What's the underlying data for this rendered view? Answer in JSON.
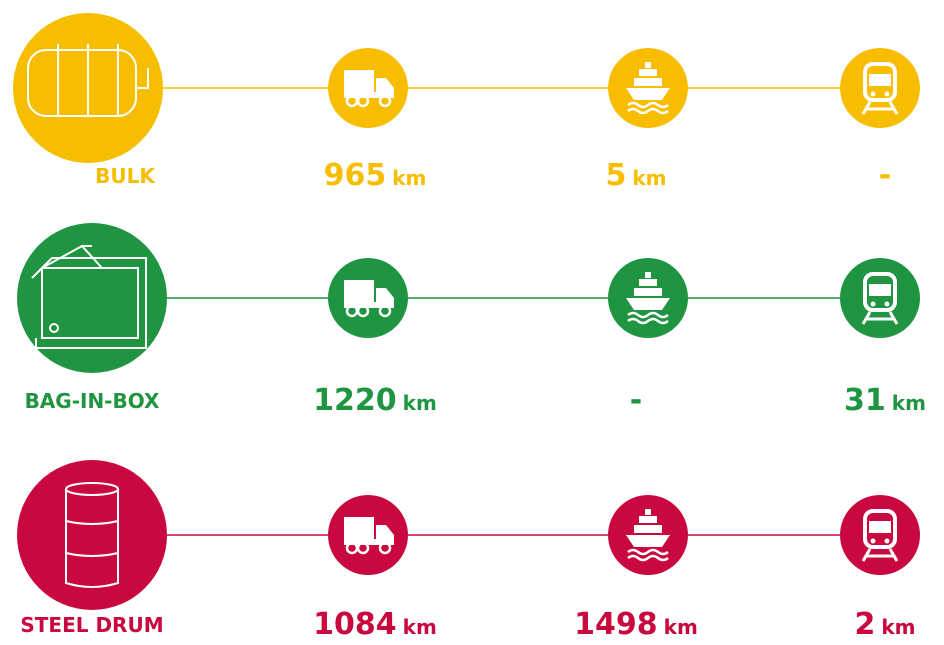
{
  "rows": [
    {
      "label": "BULK",
      "color": "#f7bd00",
      "distances": [
        {
          "value": 965,
          "unit": "km"
        },
        {
          "value": 5,
          "unit": "km"
        },
        {
          "value": "-"
        }
      ]
    },
    {
      "label": "BAG-IN-BOX",
      "color": "#1f9441",
      "distances": [
        {
          "value": 1220,
          "unit": "km"
        },
        {
          "value": "-"
        },
        {
          "value": 31,
          "unit": "km"
        }
      ]
    },
    {
      "label": "STEEL DRUM",
      "color": "#c8083e",
      "distances": [
        {
          "value": 1084,
          "unit": "km"
        },
        {
          "value": 1498,
          "unit": "km"
        },
        {
          "value": 2,
          "unit": "km"
        }
      ]
    }
  ]
}
